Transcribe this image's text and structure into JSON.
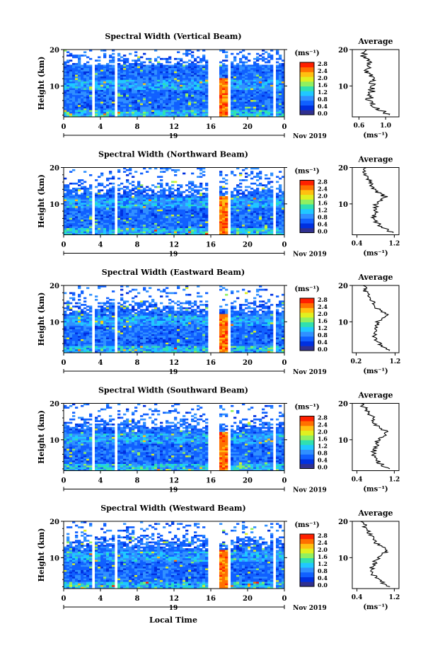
{
  "figure": {
    "xlabel": "Local Time",
    "date_label": "Nov 2019",
    "day_label": "19",
    "colorbar_unit": "(ms⁻¹)",
    "colorbar_ticks": [
      "0.0",
      "0.4",
      "0.8",
      "1.2",
      "1.6",
      "2.0",
      "2.4",
      "2.8"
    ],
    "colorbar_colors": [
      "#303090",
      "#0030e0",
      "#1060ff",
      "#3090ff",
      "#20c8ff",
      "#30e0b0",
      "#90f060",
      "#e0f020",
      "#ffc010",
      "#ff7000",
      "#ff2000"
    ],
    "avg_title": "Average",
    "avg_xlabel": "(ms⁻¹)",
    "ylabel": "Height (km)",
    "time_ticks": [
      "0",
      "4",
      "8",
      "12",
      "16",
      "20",
      "0"
    ],
    "height_ticks": [
      "20",
      "10"
    ]
  },
  "chart_data": [
    {
      "type": "heatmap",
      "title": "Spectral Width (Vertical Beam)",
      "xlabel": "Local Time",
      "ylabel": "Height (km)",
      "xlim": [
        0,
        24
      ],
      "ylim": [
        1.5,
        20
      ],
      "colorbar_range": [
        0.0,
        2.8
      ],
      "average_profile": {
        "title": "Average",
        "xlabel": "(ms⁻¹)",
        "xticks": [
          "0.6",
          "1.0"
        ],
        "xlim": [
          0.5,
          1.2
        ],
        "height": [
          2,
          4,
          6,
          8,
          10,
          12,
          14,
          16,
          18,
          20
        ],
        "value": [
          1.05,
          0.85,
          0.75,
          0.78,
          0.8,
          0.8,
          0.7,
          0.75,
          0.68,
          0.65
        ]
      }
    },
    {
      "type": "heatmap",
      "title": "Spectral Width (Northward Beam)",
      "xlabel": "Local Time",
      "ylabel": "Height (km)",
      "xlim": [
        0,
        24
      ],
      "ylim": [
        1.5,
        20
      ],
      "colorbar_range": [
        0.0,
        2.8
      ],
      "average_profile": {
        "title": "Average",
        "xlabel": "(ms⁻¹)",
        "xticks": [
          "0.4",
          "1.2"
        ],
        "xlim": [
          0.3,
          1.3
        ],
        "height": [
          2,
          4,
          6,
          8,
          10,
          12,
          14,
          16,
          18,
          20
        ],
        "value": [
          1.15,
          0.9,
          0.75,
          0.8,
          0.8,
          1.0,
          0.75,
          0.7,
          0.6,
          0.55
        ]
      }
    },
    {
      "type": "heatmap",
      "title": "Spectral Width (Eastward Beam)",
      "xlabel": "Local Time",
      "ylabel": "Height (km)",
      "xlim": [
        0,
        24
      ],
      "ylim": [
        1.5,
        20
      ],
      "colorbar_range": [
        0.0,
        2.8
      ],
      "average_profile": {
        "title": "Average",
        "xlabel": "(ms⁻¹)",
        "xticks": [
          "0.2",
          "1.2"
        ],
        "xlim": [
          0.1,
          1.3
        ],
        "height": [
          2,
          4,
          6,
          8,
          10,
          12,
          14,
          16,
          18,
          20
        ],
        "value": [
          1.05,
          0.8,
          0.65,
          0.7,
          0.75,
          1.0,
          0.7,
          0.6,
          0.45,
          0.4
        ]
      }
    },
    {
      "type": "heatmap",
      "title": "Spectral Width (Southward Beam)",
      "xlabel": "Local Time",
      "ylabel": "Height (km)",
      "xlim": [
        0,
        24
      ],
      "ylim": [
        1.5,
        20
      ],
      "colorbar_range": [
        0.0,
        2.8
      ],
      "average_profile": {
        "title": "Average",
        "xlabel": "(ms⁻¹)",
        "xticks": [
          "0.4",
          "1.2"
        ],
        "xlim": [
          0.3,
          1.3
        ],
        "height": [
          2,
          4,
          6,
          8,
          10,
          12,
          14,
          16,
          18,
          20
        ],
        "value": [
          1.05,
          0.85,
          0.75,
          0.8,
          0.85,
          1.05,
          0.8,
          0.75,
          0.6,
          0.5
        ]
      }
    },
    {
      "type": "heatmap",
      "title": "Spectral Width (Westward Beam)",
      "xlabel": "Local Time",
      "ylabel": "Height (km)",
      "xlim": [
        0,
        24
      ],
      "ylim": [
        1.5,
        20
      ],
      "colorbar_range": [
        0.0,
        2.8
      ],
      "average_profile": {
        "title": "Average",
        "xlabel": "(ms⁻¹)",
        "xticks": [
          "0.4",
          "1.2"
        ],
        "xlim": [
          0.3,
          1.3
        ],
        "height": [
          2,
          4,
          6,
          8,
          10,
          12,
          14,
          16,
          18,
          20
        ],
        "value": [
          1.1,
          0.85,
          0.7,
          0.75,
          0.85,
          1.05,
          0.8,
          0.7,
          0.6,
          0.5
        ]
      }
    }
  ]
}
